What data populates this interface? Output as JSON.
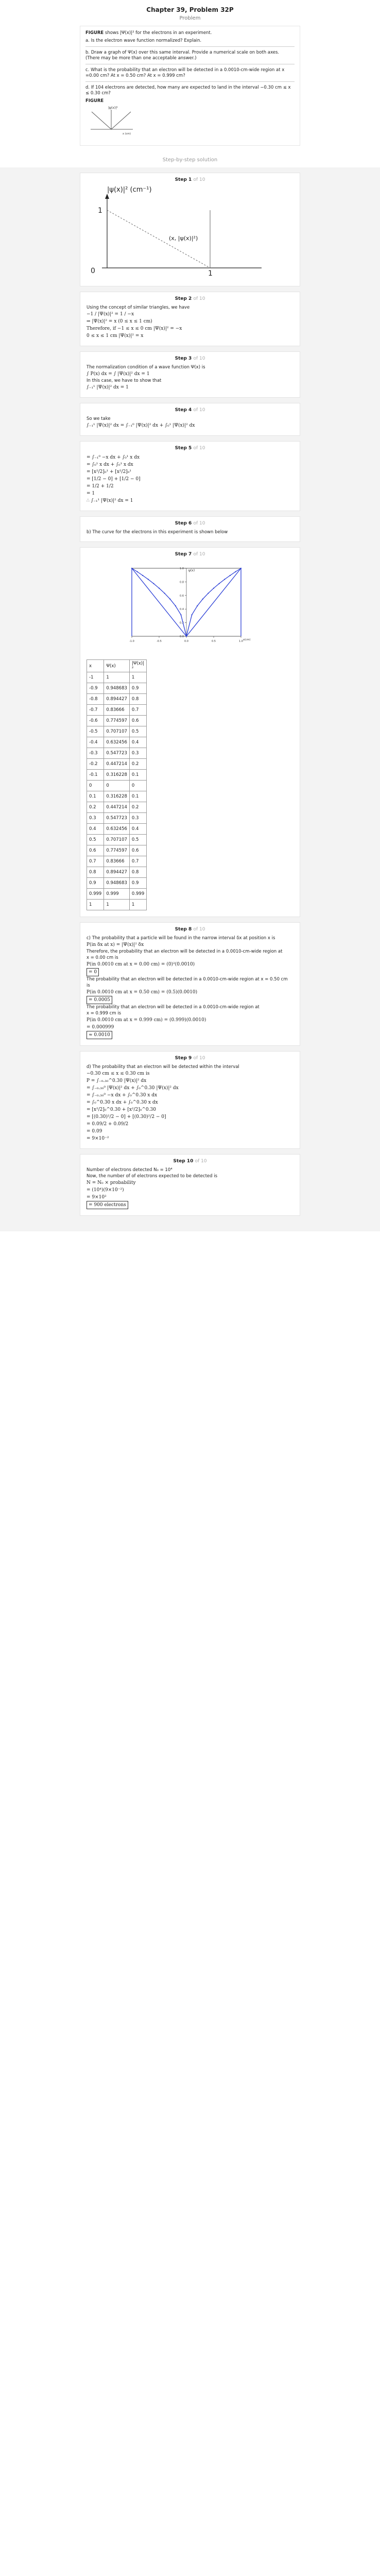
{
  "header": {
    "chapter_title": "Chapter 39, Problem 32P",
    "problem_label": "Problem"
  },
  "problem": {
    "intro_bold": "FIGURE",
    "intro_rest": " shows |Ψ(x)|² for the electrons in an experiment.",
    "a": "a. Is the electron wave function normalized? Explain.",
    "b1": "b. Draw a graph of Ψ(x) over this same interval. Provide a numerical scale on both axes.",
    "b2": "(There may be more than one acceptable answer.)",
    "c1": "c. What is the probability that an electron will be detected in a 0.0010-cm-wide region at x",
    "c2": "=0.00 cm? At x = 0.50 cm? At x = 0.999 cm?",
    "d1": "d. If 104 electrons are detected, how many are expected to land in the interval −0.30 cm ≤ x",
    "d2": "≤ 0.30 cm?",
    "figure_label": "FIGURE",
    "fig_ylabel": "|ψ(x)|²",
    "fig_xlabel": "x (cm)"
  },
  "sbs_label": "Step-by-step solution",
  "steps": {
    "s1": {
      "title": "Step 1",
      "of": "of 10",
      "ylabel": "|ψ(x)|²  (cm⁻¹)",
      "y1": "1",
      "x0": "0",
      "x1": "1",
      "annot": "(x, |ψ(x)|²)"
    },
    "s2": {
      "title": "Step 2",
      "of": "of 10",
      "l1": "Using the concept of similar triangles, we have",
      "l2": "−1 / |Ψ(x)|² = 1 / −x",
      "l3": "⇒ |Ψ(x)|² = x    (0 ≤ x ≤ 1 cm)",
      "l4": "Therefore, if −1 ≤ x ≤ 0 cm  |Ψ(x)|² = −x",
      "l5": "0 ≤ x ≤ 1 cm  |Ψ(x)|² = x"
    },
    "s3": {
      "title": "Step 3",
      "of": "of 10",
      "l1": "The normalization condition of a wave function Ψ(x) is",
      "l2": "∫ P(x) dx = ∫ |Ψ(x)|² dx = 1",
      "l3": "In this case, we have to show that",
      "l4": "∫₋₁¹ |Ψ(x)|² dx = 1"
    },
    "s4": {
      "title": "Step 4",
      "of": "of 10",
      "l1": "So we take",
      "l2": "∫₋₁¹ |Ψ(x)|² dx = ∫₋₁⁰ |Ψ(x)|² dx + ∫₀¹ |Ψ(x)|² dx"
    },
    "s5": {
      "title": "Step 5",
      "of": "of 10",
      "l1": "= ∫₋₁⁰ −x dx + ∫₀¹ x dx",
      "l2": "= ∫₀¹ x dx + ∫₀¹ x dx",
      "l3": "= [x²/2]₀¹ + [x²/2]₀¹",
      "l4": "= [1/2 − 0] + [1/2 − 0]",
      "l5": "= 1/2 + 1/2",
      "l6": "= 1",
      "l7": "∴ ∫₋₁¹ |Ψ(x)|² dx = 1"
    },
    "s6": {
      "title": "Step 6",
      "of": "of 10",
      "l1": "b) The curve for the electrons in this experiment is shown below"
    },
    "s7": {
      "title": "Step 7",
      "of": "of 10",
      "col_x": "x",
      "col_psi": "Ψ(x)",
      "col_psi2": "|Ψ(x)|²"
    },
    "s8": {
      "title": "Step 8",
      "of": "of 10",
      "l1": "c) The probability that a particle will be found in the narrow interval δx at position x is",
      "l2": "P(in δx at x) = |Ψ(x)|² δx",
      "l3": "Therefore, the probability that an electron will be detected in a 0.0010-cm-wide region at",
      "l4": "x = 0.00 cm is",
      "l5": "P(in 0.0010 cm at x = 0.00 cm) = (0)²(0.0010)",
      "l6": "= 0",
      "l7": "The probability that an electron will be detected in a 0.0010-cm-wide region at x = 0.50 cm",
      "l8": "is",
      "l9": "P(in 0.0010 cm at x = 0.50 cm) = (0.5)(0.0010)",
      "l10": "= 0.0005",
      "l11": "The probability that an electron will be detected in a 0.0010-cm-wide region at",
      "l12": "x = 0.999 cm is",
      "l13": "P(in 0.0010 cm at x = 0.999 cm) = (0.999)(0.0010)",
      "l14": "= 0.000999",
      "l15": "≈ 0.0010"
    },
    "s9": {
      "title": "Step 9",
      "of": "of 10",
      "l1": "d) The probability that an electron will be detected within the interval",
      "l2": "−0.30 cm ≤ x ≤ 0.30 cm is",
      "l3": "P = ∫₋₀.₃₀^0.30 |Ψ(x)|² dx",
      "l4": "= ∫₋₀.₃₀⁰ |Ψ(x)|² dx + ∫₀^0.30 |Ψ(x)|² dx",
      "l5": "= ∫₋₀.₃₀⁰ −x dx + ∫₀^0.30 x dx",
      "l6": "= ∫₀^0.30 x dx + ∫₀^0.30 x dx",
      "l7": "= [x²/2]₀^0.30 + [x²/2]₀^0.30",
      "l8": "= [(0.30)²/2 − 0] + [(0.30)²/2 − 0]",
      "l9": "= 0.09/2 + 0.09/2",
      "l10": "= 0.09",
      "l11": "= 9×10⁻²"
    },
    "s10": {
      "title": "Step 10",
      "of": "of 10",
      "l1": "Number of electrons detected  N₀ = 10⁴",
      "l2": "Now, the number of of electrons expected to be detected is",
      "l3": "N = N₀ × probability",
      "l4": "= (10⁴)(9×10⁻²)",
      "l5": "= 9×10²",
      "l6": "= 900 electrons"
    }
  },
  "chart_data": [
    {
      "type": "line",
      "title": "",
      "xlabel": "x (cm)",
      "ylabel": "|ψ(x)|²",
      "xlim": [
        -1,
        1
      ],
      "ylim": [
        0,
        1
      ],
      "series": [
        {
          "x": [
            -1,
            0,
            1
          ],
          "y": [
            1,
            0,
            1
          ]
        }
      ]
    },
    {
      "type": "line",
      "title": "",
      "xlabel": "x(cm)",
      "ylabel": "ψ(x)",
      "xlim": [
        -1,
        1
      ],
      "ylim": [
        0,
        1
      ],
      "x_ticks": [
        "-1.0",
        "-0.5",
        "0.0",
        "0.5",
        "1.0"
      ],
      "y_ticks": [
        "0.0",
        "0.2",
        "0.4",
        "0.6",
        "0.8",
        "1.0"
      ],
      "series": [
        {
          "x": [
            -1,
            -0.9,
            -0.8,
            -0.7,
            -0.6,
            -0.5,
            -0.4,
            -0.3,
            -0.2,
            -0.1,
            0,
            0.1,
            0.2,
            0.3,
            0.4,
            0.5,
            0.6,
            0.7,
            0.8,
            0.9,
            1
          ],
          "y": [
            1,
            0.949,
            0.894,
            0.837,
            0.775,
            0.707,
            0.632,
            0.548,
            0.447,
            0.316,
            0,
            0.316,
            0.447,
            0.548,
            0.632,
            0.707,
            0.775,
            0.837,
            0.894,
            0.949,
            1
          ]
        },
        {
          "x": [
            -1,
            0,
            1
          ],
          "y": [
            1,
            0,
            1
          ]
        }
      ]
    }
  ],
  "table": {
    "rows": [
      [
        "-1",
        "1",
        "1"
      ],
      [
        "-0.9",
        "0.948683",
        "0.9"
      ],
      [
        "-0.8",
        "0.894427",
        "0.8"
      ],
      [
        "-0.7",
        "0.83666",
        "0.7"
      ],
      [
        "-0.6",
        "0.774597",
        "0.6"
      ],
      [
        "-0.5",
        "0.707107",
        "0.5"
      ],
      [
        "-0.4",
        "0.632456",
        "0.4"
      ],
      [
        "-0.3",
        "0.547723",
        "0.3"
      ],
      [
        "-0.2",
        "0.447214",
        "0.2"
      ],
      [
        "-0.1",
        "0.316228",
        "0.1"
      ],
      [
        "0",
        "0",
        "0"
      ],
      [
        "0.1",
        "0.316228",
        "0.1"
      ],
      [
        "0.2",
        "0.447214",
        "0.2"
      ],
      [
        "0.3",
        "0.547723",
        "0.3"
      ],
      [
        "0.4",
        "0.632456",
        "0.4"
      ],
      [
        "0.5",
        "0.707107",
        "0.5"
      ],
      [
        "0.6",
        "0.774597",
        "0.6"
      ],
      [
        "0.7",
        "0.83666",
        "0.7"
      ],
      [
        "0.8",
        "0.894427",
        "0.8"
      ],
      [
        "0.9",
        "0.948683",
        "0.9"
      ],
      [
        "0.999",
        "0.999",
        "0.999"
      ],
      [
        "1",
        "1",
        "1"
      ]
    ]
  },
  "colors": {
    "curve_blue": "#2b3fd6",
    "step_of": "#aaaaaa",
    "panel_bg": "#f3f3f3"
  }
}
